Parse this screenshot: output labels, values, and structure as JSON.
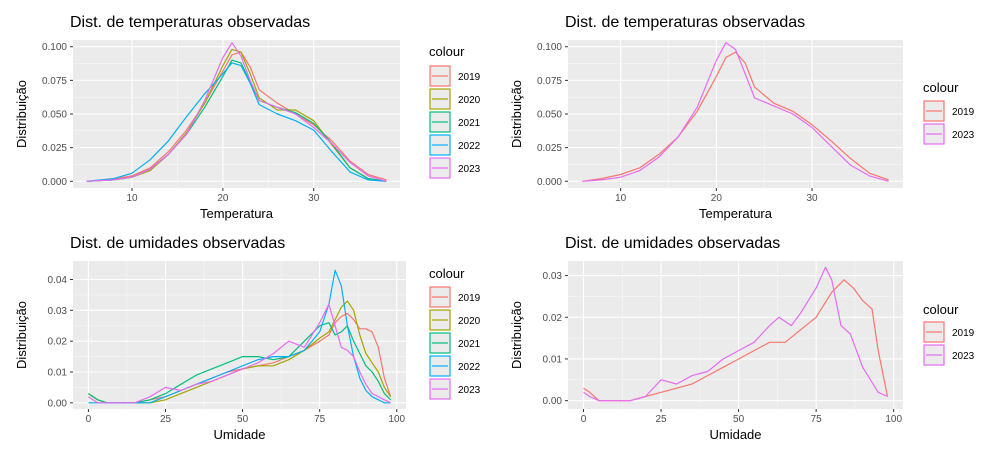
{
  "legend_title": "colour",
  "colors": {
    "2019": "#F8766D",
    "2020": "#A3A500",
    "2021": "#00BF7D",
    "2022": "#00B0F6",
    "2023": "#E76BF3"
  },
  "chart_data": [
    {
      "type": "line",
      "title": "Dist. de temperaturas observadas",
      "xlabel": "Temperatura",
      "ylabel": "Distribuição",
      "xlim": [
        3.5,
        39.5
      ],
      "ylim": [
        -0.005,
        0.105
      ],
      "xticks": [
        10,
        20,
        30
      ],
      "yticks": [
        0.0,
        0.025,
        0.05,
        0.075,
        0.1
      ],
      "ytick_labels": [
        "0.000",
        "0.025",
        "0.050",
        "0.075",
        "0.100"
      ],
      "legend_title": "colour",
      "legend_entries": [
        "2019",
        "2020",
        "2021",
        "2022",
        "2023"
      ],
      "series": [
        {
          "name": "2019",
          "x": [
            5,
            8,
            10,
            12,
            14,
            16,
            18,
            20,
            21,
            22,
            23,
            24,
            26,
            28,
            30,
            32,
            34,
            36,
            38
          ],
          "y": [
            0.0,
            0.002,
            0.004,
            0.01,
            0.022,
            0.038,
            0.058,
            0.082,
            0.094,
            0.096,
            0.085,
            0.068,
            0.058,
            0.05,
            0.042,
            0.03,
            0.015,
            0.005,
            0.001
          ]
        },
        {
          "name": "2020",
          "x": [
            5,
            8,
            10,
            12,
            14,
            16,
            18,
            20,
            21,
            22,
            23,
            24,
            26,
            28,
            30,
            32,
            34,
            36,
            38
          ],
          "y": [
            0.0,
            0.001,
            0.003,
            0.008,
            0.02,
            0.036,
            0.058,
            0.086,
            0.098,
            0.096,
            0.08,
            0.062,
            0.053,
            0.053,
            0.045,
            0.027,
            0.01,
            0.002,
            0.0
          ]
        },
        {
          "name": "2021",
          "x": [
            5,
            8,
            10,
            12,
            14,
            16,
            18,
            20,
            21,
            22,
            23,
            24,
            26,
            28,
            30,
            32,
            34,
            36,
            38
          ],
          "y": [
            0.0,
            0.001,
            0.003,
            0.009,
            0.02,
            0.035,
            0.055,
            0.078,
            0.09,
            0.088,
            0.074,
            0.06,
            0.055,
            0.051,
            0.043,
            0.028,
            0.01,
            0.002,
            0.0
          ]
        },
        {
          "name": "2022",
          "x": [
            5,
            8,
            10,
            12,
            14,
            16,
            18,
            20,
            21,
            22,
            23,
            24,
            26,
            28,
            30,
            32,
            34,
            36,
            38
          ],
          "y": [
            0.0,
            0.002,
            0.006,
            0.016,
            0.03,
            0.048,
            0.065,
            0.08,
            0.088,
            0.086,
            0.073,
            0.057,
            0.05,
            0.045,
            0.038,
            0.022,
            0.007,
            0.001,
            0.0
          ]
        },
        {
          "name": "2023",
          "x": [
            5,
            8,
            10,
            12,
            14,
            16,
            18,
            20,
            21,
            22,
            23,
            24,
            26,
            28,
            30,
            32,
            34,
            36,
            38
          ],
          "y": [
            0.0,
            0.001,
            0.003,
            0.009,
            0.02,
            0.035,
            0.06,
            0.092,
            0.103,
            0.093,
            0.075,
            0.06,
            0.055,
            0.05,
            0.04,
            0.028,
            0.014,
            0.004,
            0.0
          ]
        }
      ]
    },
    {
      "type": "line",
      "title": "Dist. de temperaturas observadas",
      "xlabel": "Temperatura",
      "ylabel": "Distribuição",
      "xlim": [
        4.5,
        39.5
      ],
      "ylim": [
        -0.005,
        0.105
      ],
      "xticks": [
        10,
        20,
        30
      ],
      "yticks": [
        0.0,
        0.025,
        0.05,
        0.075,
        0.1
      ],
      "ytick_labels": [
        "0.000",
        "0.025",
        "0.050",
        "0.075",
        "0.100"
      ],
      "legend_title": "colour",
      "legend_entries": [
        "2019",
        "2023"
      ],
      "series": [
        {
          "name": "2019",
          "x": [
            6,
            8,
            10,
            12,
            14,
            16,
            18,
            20,
            21,
            22,
            23,
            24,
            26,
            28,
            30,
            32,
            34,
            36,
            38
          ],
          "y": [
            0.0,
            0.002,
            0.005,
            0.01,
            0.02,
            0.033,
            0.052,
            0.078,
            0.092,
            0.096,
            0.088,
            0.07,
            0.058,
            0.052,
            0.042,
            0.03,
            0.017,
            0.006,
            0.001
          ]
        },
        {
          "name": "2023",
          "x": [
            6,
            8,
            10,
            12,
            14,
            16,
            18,
            20,
            21,
            22,
            23,
            24,
            26,
            28,
            30,
            32,
            34,
            36,
            38
          ],
          "y": [
            0.0,
            0.001,
            0.003,
            0.008,
            0.018,
            0.033,
            0.055,
            0.09,
            0.103,
            0.098,
            0.08,
            0.062,
            0.056,
            0.05,
            0.04,
            0.026,
            0.012,
            0.004,
            0.0
          ]
        }
      ]
    },
    {
      "type": "line",
      "title": "Dist. de umidades observadas",
      "xlabel": "Umidade",
      "ylabel": "Distribuição",
      "xlim": [
        -5,
        103
      ],
      "ylim": [
        -0.002,
        0.046
      ],
      "xticks": [
        0,
        25,
        50,
        75,
        100
      ],
      "yticks": [
        0.0,
        0.01,
        0.02,
        0.03,
        0.04
      ],
      "ytick_labels": [
        "0.00",
        "0.01",
        "0.02",
        "0.03",
        "0.04"
      ],
      "legend_title": "colour",
      "legend_entries": [
        "2019",
        "2020",
        "2021",
        "2022",
        "2023"
      ],
      "series": [
        {
          "name": "2019",
          "x": [
            0,
            3,
            6,
            10,
            15,
            20,
            25,
            30,
            35,
            40,
            45,
            50,
            55,
            60,
            65,
            70,
            75,
            78,
            80,
            82,
            84,
            86,
            88,
            90,
            92,
            94,
            96,
            98
          ],
          "y": [
            0.003,
            0.001,
            0.0,
            0.0,
            0.0,
            0.001,
            0.002,
            0.004,
            0.006,
            0.008,
            0.01,
            0.011,
            0.012,
            0.013,
            0.015,
            0.017,
            0.02,
            0.022,
            0.026,
            0.028,
            0.029,
            0.027,
            0.024,
            0.024,
            0.023,
            0.018,
            0.008,
            0.002
          ]
        },
        {
          "name": "2020",
          "x": [
            0,
            3,
            6,
            10,
            15,
            20,
            25,
            30,
            35,
            40,
            45,
            50,
            55,
            60,
            65,
            70,
            75,
            78,
            80,
            82,
            84,
            86,
            88,
            90,
            92,
            94,
            96,
            98
          ],
          "y": [
            0.003,
            0.001,
            0.0,
            0.0,
            0.0,
            0.0,
            0.001,
            0.003,
            0.005,
            0.007,
            0.009,
            0.011,
            0.012,
            0.012,
            0.014,
            0.017,
            0.021,
            0.023,
            0.027,
            0.031,
            0.033,
            0.03,
            0.022,
            0.016,
            0.013,
            0.01,
            0.005,
            0.002
          ]
        },
        {
          "name": "2021",
          "x": [
            0,
            3,
            6,
            10,
            15,
            20,
            25,
            30,
            35,
            40,
            45,
            50,
            55,
            60,
            65,
            70,
            75,
            78,
            80,
            82,
            84,
            86,
            88,
            90,
            92,
            94,
            96,
            98
          ],
          "y": [
            0.003,
            0.001,
            0.0,
            0.0,
            0.0,
            0.001,
            0.003,
            0.006,
            0.009,
            0.011,
            0.013,
            0.015,
            0.015,
            0.014,
            0.015,
            0.02,
            0.025,
            0.026,
            0.022,
            0.023,
            0.025,
            0.02,
            0.016,
            0.012,
            0.01,
            0.007,
            0.003,
            0.001
          ]
        },
        {
          "name": "2022",
          "x": [
            0,
            3,
            6,
            10,
            15,
            20,
            25,
            30,
            35,
            40,
            45,
            50,
            55,
            60,
            65,
            70,
            75,
            78,
            80,
            82,
            84,
            86,
            88,
            90,
            92,
            94,
            96,
            98
          ],
          "y": [
            0.0,
            0.0,
            0.0,
            0.0,
            0.0,
            0.0,
            0.002,
            0.004,
            0.006,
            0.008,
            0.01,
            0.012,
            0.014,
            0.015,
            0.015,
            0.017,
            0.023,
            0.032,
            0.043,
            0.038,
            0.025,
            0.015,
            0.008,
            0.004,
            0.002,
            0.001,
            0.0,
            0.0
          ]
        },
        {
          "name": "2023",
          "x": [
            0,
            3,
            6,
            10,
            15,
            20,
            25,
            30,
            35,
            40,
            45,
            50,
            55,
            60,
            65,
            70,
            75,
            78,
            80,
            82,
            84,
            86,
            88,
            90,
            92,
            94,
            96,
            98
          ],
          "y": [
            0.002,
            0.0,
            0.0,
            0.0,
            0.0,
            0.002,
            0.005,
            0.004,
            0.006,
            0.007,
            0.009,
            0.011,
            0.013,
            0.016,
            0.02,
            0.018,
            0.026,
            0.032,
            0.025,
            0.018,
            0.017,
            0.015,
            0.01,
            0.006,
            0.003,
            0.002,
            0.001,
            0.0
          ]
        }
      ]
    },
    {
      "type": "line",
      "title": "Dist. de umidades observadas",
      "xlabel": "Umidade",
      "ylabel": "Distribuição",
      "xlim": [
        -5,
        103
      ],
      "ylim": [
        -0.002,
        0.0335
      ],
      "xticks": [
        0,
        25,
        50,
        75,
        100
      ],
      "yticks": [
        0.0,
        0.01,
        0.02,
        0.03
      ],
      "ytick_labels": [
        "0.00",
        "0.01",
        "0.02",
        "0.03"
      ],
      "legend_title": "colour",
      "legend_entries": [
        "2019",
        "2023"
      ],
      "series": [
        {
          "name": "2019",
          "x": [
            0,
            2,
            5,
            10,
            15,
            20,
            25,
            30,
            35,
            40,
            45,
            50,
            55,
            60,
            65,
            70,
            75,
            80,
            84,
            87,
            90,
            93,
            95,
            98
          ],
          "y": [
            0.003,
            0.002,
            0.0,
            0.0,
            0.0,
            0.001,
            0.002,
            0.003,
            0.004,
            0.006,
            0.008,
            0.01,
            0.012,
            0.014,
            0.014,
            0.017,
            0.02,
            0.026,
            0.029,
            0.027,
            0.024,
            0.022,
            0.012,
            0.001
          ]
        },
        {
          "name": "2023",
          "x": [
            0,
            2,
            5,
            10,
            15,
            20,
            25,
            30,
            35,
            40,
            45,
            50,
            55,
            60,
            63,
            67,
            70,
            75,
            78,
            80,
            83,
            86,
            90,
            95,
            98
          ],
          "y": [
            0.002,
            0.001,
            0.0,
            0.0,
            0.0,
            0.001,
            0.005,
            0.004,
            0.006,
            0.007,
            0.01,
            0.012,
            0.014,
            0.018,
            0.02,
            0.018,
            0.021,
            0.027,
            0.032,
            0.029,
            0.018,
            0.016,
            0.008,
            0.002,
            0.001
          ]
        }
      ]
    }
  ]
}
